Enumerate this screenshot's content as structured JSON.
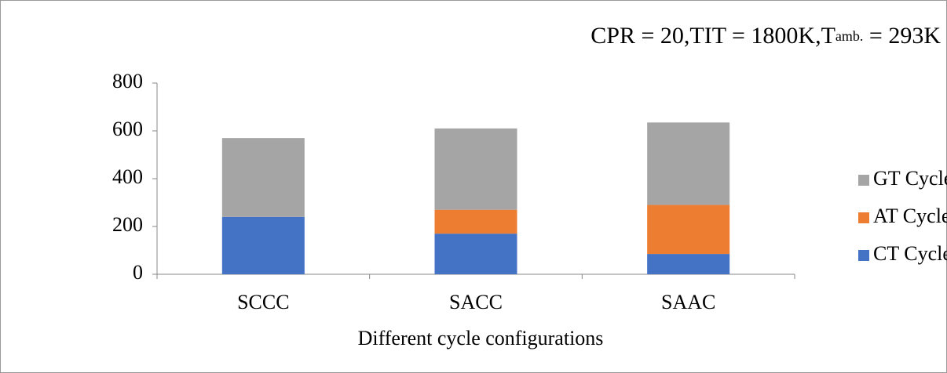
{
  "chart_data": {
    "type": "stacked_bar",
    "title": [
      "CPR = 20,TIT = 1800K,T",
      "amb.",
      " = 293K"
    ],
    "x_label": "Different cycle configurations",
    "categories": [
      "SCCC",
      "SACC",
      "SAAC"
    ],
    "series": [
      {
        "name": "CT Cycle",
        "color": "#4472c4",
        "values": [
          240,
          170,
          85
        ]
      },
      {
        "name": "AT Cycle",
        "color": "#ed7d31",
        "values": [
          0,
          100,
          205
        ]
      },
      {
        "name": "GT Cycle",
        "color": "#a5a5a5",
        "values": [
          330,
          340,
          345
        ]
      }
    ],
    "ylim": [
      0,
      800
    ],
    "yticks": [
      0,
      200,
      400,
      600,
      800
    ],
    "grid": false,
    "legend": "right"
  }
}
